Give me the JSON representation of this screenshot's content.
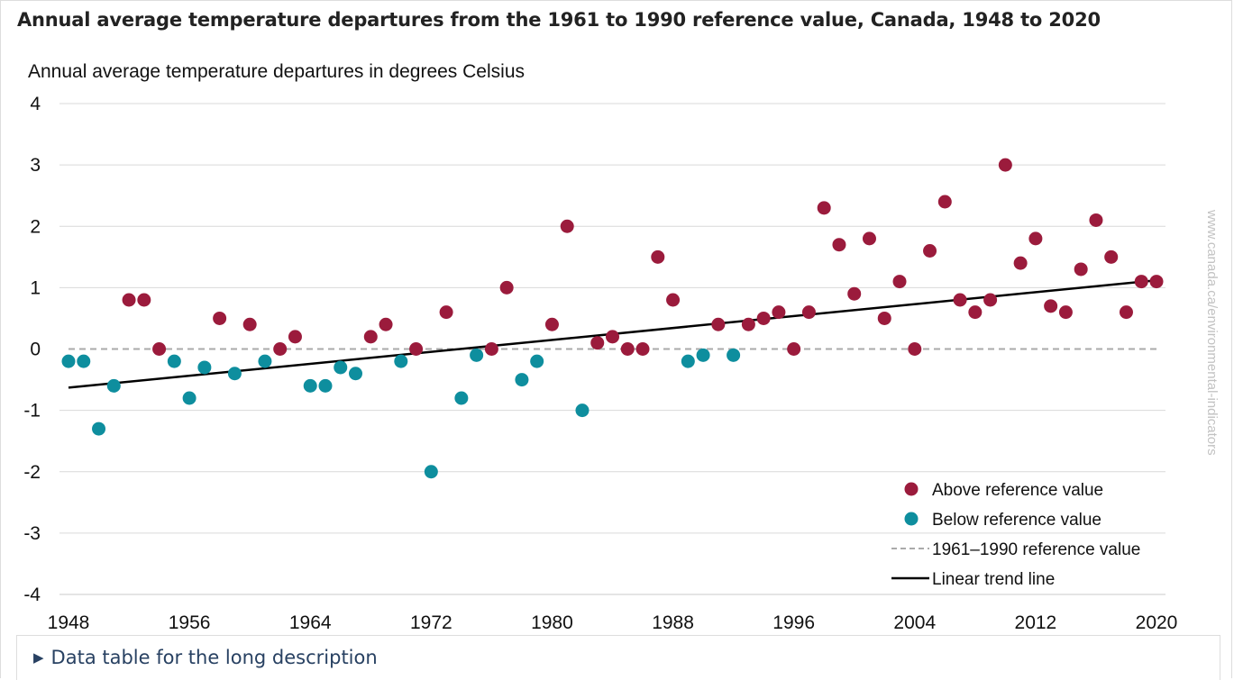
{
  "heading": "Annual average temperature departures from the 1961 to 1990 reference value, Canada, 1948 to 2020",
  "details": {
    "summary_label": "Data table for the long description",
    "caret_icon": "caret-right-icon"
  },
  "colors": {
    "above": "#9b1b3c",
    "below": "#0e8e9e",
    "reference_line": "#aaaaaa",
    "trend_line": "#000000",
    "grid": "#d9d9d9"
  },
  "chart_data": {
    "type": "scatter",
    "title": "",
    "ylabel": "Annual average temperature departures in degrees Celsius",
    "xlabel": "",
    "source_watermark": "www.canada.ca/environmental-indicators",
    "ylim": [
      -4,
      4
    ],
    "xlim": [
      1948,
      2020
    ],
    "x_ticks": [
      1948,
      1956,
      1964,
      1972,
      1980,
      1988,
      1996,
      2004,
      2012,
      2020
    ],
    "y_ticks": [
      -4,
      -3,
      -2,
      -1,
      0,
      1,
      2,
      3,
      4
    ],
    "grid": "horizontal",
    "legend_position": "bottom-right",
    "legend": [
      {
        "label": "Above reference value",
        "kind": "dot",
        "color": "#9b1b3c"
      },
      {
        "label": "Below reference value",
        "kind": "dot",
        "color": "#0e8e9e"
      },
      {
        "label": "1961–1990 reference value",
        "kind": "dashed",
        "color": "#aaaaaa"
      },
      {
        "label": "Linear trend line",
        "kind": "solid",
        "color": "#000000"
      }
    ],
    "series": [
      {
        "name": "Above reference value",
        "color": "#9b1b3c",
        "points": [
          [
            1952,
            0.8
          ],
          [
            1953,
            0.8
          ],
          [
            1954,
            0.0
          ],
          [
            1958,
            0.5
          ],
          [
            1960,
            0.4
          ],
          [
            1962,
            0.0
          ],
          [
            1963,
            0.2
          ],
          [
            1968,
            0.2
          ],
          [
            1969,
            0.4
          ],
          [
            1971,
            0.0
          ],
          [
            1973,
            0.6
          ],
          [
            1976,
            0.0
          ],
          [
            1977,
            1.0
          ],
          [
            1980,
            0.4
          ],
          [
            1981,
            2.0
          ],
          [
            1983,
            0.1
          ],
          [
            1984,
            0.2
          ],
          [
            1985,
            0.0
          ],
          [
            1986,
            0.0
          ],
          [
            1987,
            1.5
          ],
          [
            1988,
            0.8
          ],
          [
            1991,
            0.4
          ],
          [
            1993,
            0.4
          ],
          [
            1994,
            0.5
          ],
          [
            1995,
            0.6
          ],
          [
            1996,
            0.0
          ],
          [
            1997,
            0.6
          ],
          [
            1998,
            2.3
          ],
          [
            1999,
            1.7
          ],
          [
            2000,
            0.9
          ],
          [
            2001,
            1.8
          ],
          [
            2002,
            0.5
          ],
          [
            2003,
            1.1
          ],
          [
            2004,
            0.0
          ],
          [
            2005,
            1.6
          ],
          [
            2006,
            2.4
          ],
          [
            2007,
            0.8
          ],
          [
            2008,
            0.6
          ],
          [
            2009,
            0.8
          ],
          [
            2010,
            3.0
          ],
          [
            2011,
            1.4
          ],
          [
            2012,
            1.8
          ],
          [
            2013,
            0.7
          ],
          [
            2014,
            0.6
          ],
          [
            2015,
            1.3
          ],
          [
            2016,
            2.1
          ],
          [
            2017,
            1.5
          ],
          [
            2018,
            0.6
          ],
          [
            2019,
            1.1
          ],
          [
            2020,
            1.1
          ]
        ]
      },
      {
        "name": "Below reference value",
        "color": "#0e8e9e",
        "points": [
          [
            1948,
            -0.2
          ],
          [
            1949,
            -0.2
          ],
          [
            1950,
            -1.3
          ],
          [
            1951,
            -0.6
          ],
          [
            1955,
            -0.2
          ],
          [
            1956,
            -0.8
          ],
          [
            1957,
            -0.3
          ],
          [
            1959,
            -0.4
          ],
          [
            1961,
            -0.2
          ],
          [
            1964,
            -0.6
          ],
          [
            1965,
            -0.6
          ],
          [
            1966,
            -0.3
          ],
          [
            1967,
            -0.4
          ],
          [
            1970,
            -0.2
          ],
          [
            1972,
            -2.0
          ],
          [
            1974,
            -0.8
          ],
          [
            1975,
            -0.1
          ],
          [
            1978,
            -0.5
          ],
          [
            1979,
            -0.2
          ],
          [
            1982,
            -1.0
          ],
          [
            1989,
            -0.2
          ],
          [
            1990,
            -0.1
          ],
          [
            1992,
            -0.1
          ]
        ]
      }
    ],
    "reference_line": {
      "label": "1961–1990 reference value",
      "y": 0
    },
    "trend_line": {
      "label": "Linear trend line",
      "x": [
        1948,
        2020
      ],
      "y": [
        -0.63,
        1.12
      ]
    }
  }
}
